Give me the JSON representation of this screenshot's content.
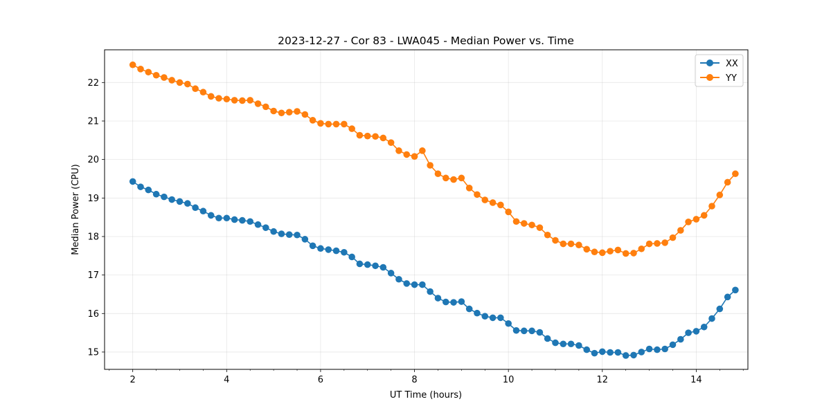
{
  "chart_data": {
    "type": "line",
    "title": "2023-12-27 - Cor 83 - LWA045 - Median Power vs. Time",
    "xlabel": "UT Time (hours)",
    "ylabel": "Median Power (CPU)",
    "xlim": [
      1.4,
      15.1
    ],
    "ylim": [
      14.55,
      22.85
    ],
    "xticks": [
      2,
      4,
      6,
      8,
      10,
      12,
      14
    ],
    "yticks": [
      15,
      16,
      17,
      18,
      19,
      20,
      21,
      22
    ],
    "grid": true,
    "legend_position": "top-right",
    "x": [
      2.0,
      2.167,
      2.333,
      2.5,
      2.667,
      2.833,
      3.0,
      3.167,
      3.333,
      3.5,
      3.667,
      3.833,
      4.0,
      4.167,
      4.333,
      4.5,
      4.667,
      4.833,
      5.0,
      5.167,
      5.333,
      5.5,
      5.667,
      5.833,
      6.0,
      6.167,
      6.333,
      6.5,
      6.667,
      6.833,
      7.0,
      7.167,
      7.333,
      7.5,
      7.667,
      7.833,
      8.0,
      8.167,
      8.333,
      8.5,
      8.667,
      8.833,
      9.0,
      9.167,
      9.333,
      9.5,
      9.667,
      9.833,
      10.0,
      10.167,
      10.333,
      10.5,
      10.667,
      10.833,
      11.0,
      11.167,
      11.333,
      11.5,
      11.667,
      11.833,
      12.0,
      12.167,
      12.333,
      12.5,
      12.667,
      12.833,
      13.0,
      13.167,
      13.333,
      13.5,
      13.667,
      13.833,
      14.0,
      14.167,
      14.333,
      14.5,
      14.667,
      14.833
    ],
    "series": [
      {
        "name": "XX",
        "color": "#1f77b4",
        "values": [
          19.43,
          19.29,
          19.21,
          19.1,
          19.03,
          18.96,
          18.91,
          18.86,
          18.75,
          18.66,
          18.55,
          18.48,
          18.48,
          18.44,
          18.42,
          18.39,
          18.31,
          18.23,
          18.13,
          18.07,
          18.05,
          18.04,
          17.93,
          17.76,
          17.69,
          17.66,
          17.63,
          17.59,
          17.47,
          17.29,
          17.27,
          17.24,
          17.2,
          17.05,
          16.89,
          16.78,
          16.75,
          16.75,
          16.57,
          16.4,
          16.3,
          16.29,
          16.31,
          16.12,
          16.01,
          15.93,
          15.89,
          15.89,
          15.74,
          15.56,
          15.55,
          15.55,
          15.51,
          15.35,
          15.24,
          15.21,
          15.21,
          15.17,
          15.06,
          14.97,
          15.01,
          14.99,
          14.99,
          14.91,
          14.92,
          15.0,
          15.08,
          15.06,
          15.08,
          15.19,
          15.33,
          15.5,
          15.54,
          15.65,
          15.87,
          16.12,
          16.43,
          16.61
        ]
      },
      {
        "name": "YY",
        "color": "#ff7f0e",
        "values": [
          22.46,
          22.35,
          22.27,
          22.19,
          22.13,
          22.06,
          22.0,
          21.96,
          21.84,
          21.75,
          21.64,
          21.59,
          21.57,
          21.54,
          21.53,
          21.54,
          21.45,
          21.37,
          21.26,
          21.21,
          21.23,
          21.25,
          21.17,
          21.02,
          20.94,
          20.92,
          20.92,
          20.92,
          20.8,
          20.63,
          20.61,
          20.6,
          20.56,
          20.44,
          20.23,
          20.13,
          20.08,
          20.23,
          19.85,
          19.63,
          19.52,
          19.48,
          19.52,
          19.26,
          19.09,
          18.95,
          18.88,
          18.82,
          18.64,
          18.39,
          18.34,
          18.3,
          18.23,
          18.04,
          17.9,
          17.81,
          17.81,
          17.78,
          17.67,
          17.6,
          17.58,
          17.62,
          17.65,
          17.56,
          17.57,
          17.68,
          17.81,
          17.82,
          17.84,
          17.97,
          18.16,
          18.38,
          18.45,
          18.55,
          18.79,
          19.08,
          19.41,
          19.63
        ]
      }
    ]
  }
}
